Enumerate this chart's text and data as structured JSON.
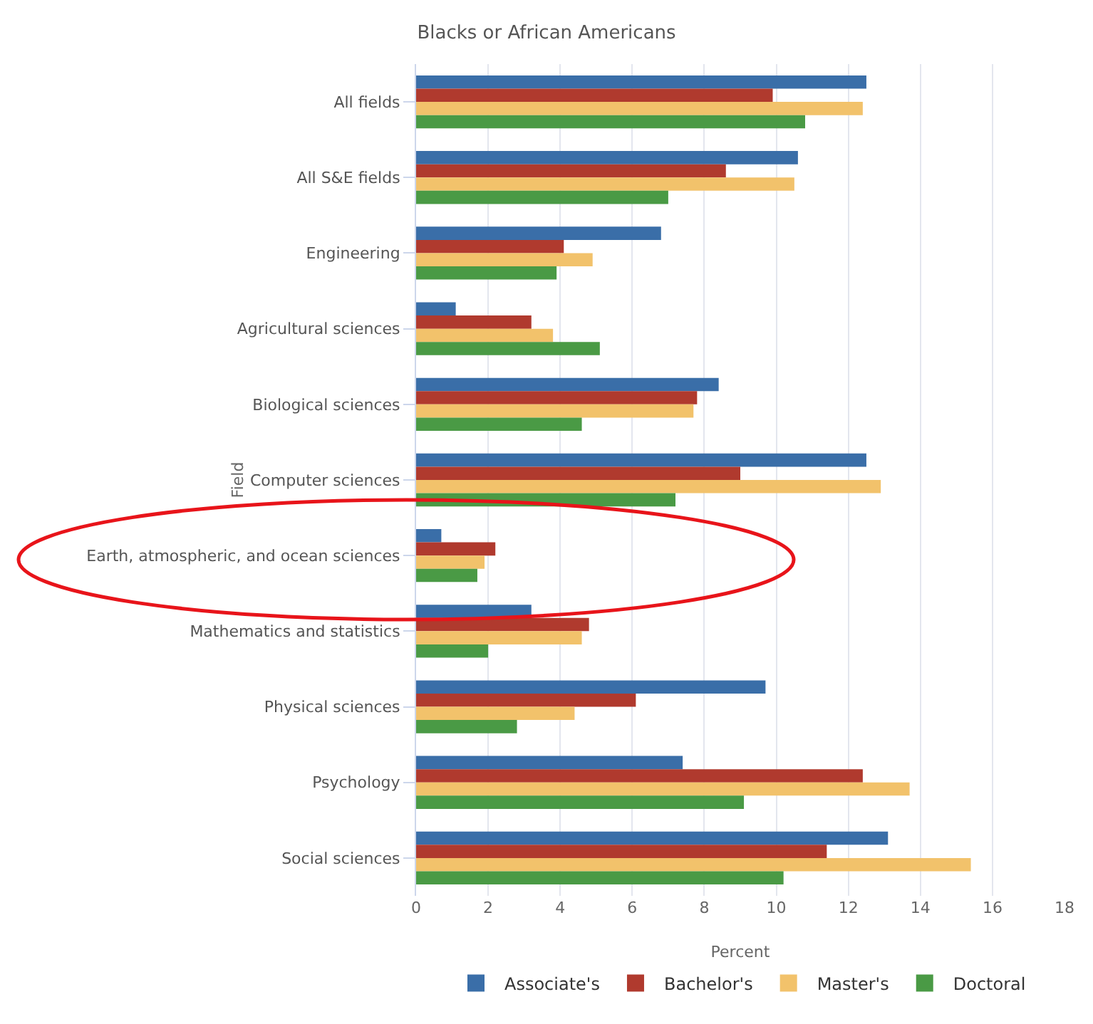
{
  "chart_data": {
    "type": "bar",
    "orientation": "horizontal",
    "title": "Blacks or African Americans",
    "xlabel": "Percent",
    "ylabel": "Field",
    "categories": [
      "All fields",
      "All S&E fields",
      "Engineering",
      "Agricultural sciences",
      "Biological sciences",
      "Computer sciences",
      "Earth, atmospheric, and ocean sciences",
      "Mathematics and statistics",
      "Physical sciences",
      "Psychology",
      "Social sciences"
    ],
    "series": [
      {
        "name": "Associate's",
        "color": "#3a6ea8",
        "values": [
          12.5,
          10.6,
          6.8,
          1.1,
          8.4,
          12.5,
          0.7,
          3.2,
          9.7,
          7.4,
          13.1
        ]
      },
      {
        "name": "Bachelor's",
        "color": "#b03a2e",
        "values": [
          9.9,
          8.6,
          4.1,
          3.2,
          7.8,
          9.0,
          2.2,
          4.8,
          6.1,
          12.4,
          11.4
        ]
      },
      {
        "name": "Master's",
        "color": "#f2c26b",
        "values": [
          12.4,
          10.5,
          4.9,
          3.8,
          7.7,
          12.9,
          1.9,
          4.6,
          4.4,
          13.7,
          15.4
        ]
      },
      {
        "name": "Doctoral",
        "color": "#4a9a45",
        "values": [
          10.8,
          7.0,
          3.9,
          5.1,
          4.6,
          7.2,
          1.7,
          2.0,
          2.8,
          9.1,
          10.2
        ]
      }
    ],
    "xlim": [
      0,
      18
    ],
    "xticks": [
      0,
      2,
      4,
      6,
      8,
      10,
      12,
      14,
      16,
      18
    ],
    "grid": "x",
    "legend": "bottom"
  }
}
